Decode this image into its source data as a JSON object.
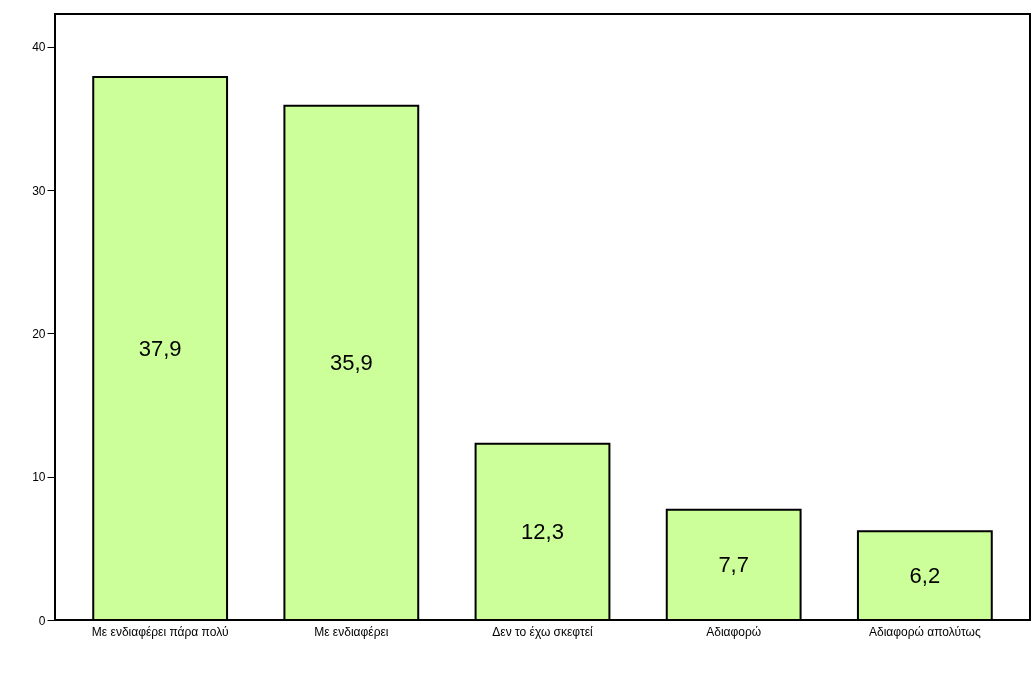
{
  "chart_data": {
    "type": "bar",
    "categories": [
      "Με ενδιαφέρει πάρα πολύ",
      "Με ενδιαφέρει",
      "Δεν το έχω σκεφτεί",
      "Αδιαφορώ",
      "Αδιαφορώ απολύτως"
    ],
    "values": [
      37.9,
      35.9,
      12.3,
      7.7,
      6.2
    ],
    "value_labels": [
      "37,9",
      "35,9",
      "12,3",
      "7,7",
      "6,2"
    ],
    "color": "#ccff99",
    "ylim": [
      0,
      42.3
    ],
    "yticks": [
      0,
      10,
      20,
      30,
      40
    ],
    "grid": false
  }
}
